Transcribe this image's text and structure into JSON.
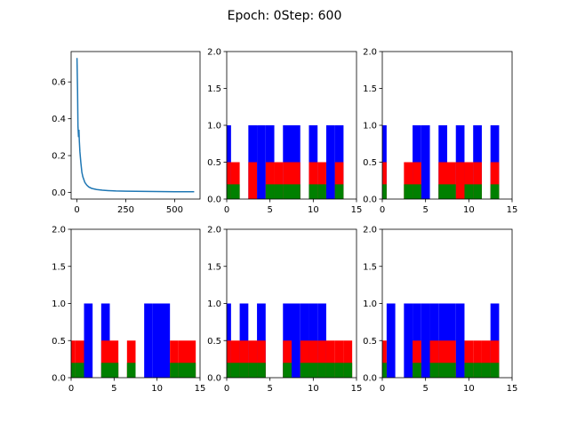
{
  "figure_title": "Epoch: 0Step: 600",
  "colors": {
    "blue": "#0000ff",
    "red": "#ff0000",
    "green": "#008000",
    "line": "#1f77b4",
    "axis": "#000000"
  },
  "chart_data": [
    {
      "type": "line",
      "title": "",
      "xlabel": "",
      "ylabel": "",
      "xlim": [
        -30,
        630
      ],
      "ylim": [
        -0.036,
        0.765
      ],
      "xticks": [
        0,
        250,
        500
      ],
      "yticks": [
        0.0,
        0.2,
        0.4,
        0.6
      ],
      "ytick_labels": [
        "0.0",
        "0.2",
        "0.4",
        "0.6"
      ],
      "grid": false,
      "series": [
        {
          "color": "#1f77b4",
          "x": [
            0,
            3,
            5,
            8,
            10,
            12,
            15,
            20,
            25,
            30,
            40,
            50,
            60,
            75,
            100,
            130,
            160,
            200,
            250,
            300,
            400,
            500,
            600
          ],
          "y": [
            0.73,
            0.55,
            0.36,
            0.3,
            0.34,
            0.28,
            0.22,
            0.16,
            0.11,
            0.085,
            0.055,
            0.04,
            0.03,
            0.022,
            0.016,
            0.012,
            0.01,
            0.008,
            0.007,
            0.006,
            0.005,
            0.004,
            0.004
          ]
        }
      ]
    },
    {
      "type": "bar",
      "xlim": [
        0,
        15
      ],
      "ylim": [
        0,
        2
      ],
      "xticks": [
        0,
        5,
        10,
        15
      ],
      "yticks": [
        0.0,
        0.5,
        1.0,
        1.5,
        2.0
      ],
      "ytick_labels": [
        "0.0",
        "0.5",
        "1.0",
        "1.5",
        "2.0"
      ],
      "x": [
        0,
        1,
        2,
        3,
        4,
        5,
        6,
        7,
        8,
        9,
        10,
        11,
        12,
        13,
        14
      ],
      "series": [
        {
          "color": "#0000ff",
          "values": [
            1,
            0,
            0,
            1,
            1,
            1,
            0,
            1,
            1,
            0,
            1,
            0,
            1,
            1,
            0
          ]
        },
        {
          "color": "#ff0000",
          "values": [
            0.5,
            0.5,
            0,
            0.5,
            0,
            0.5,
            0.5,
            0.5,
            0.5,
            0,
            0.5,
            0.5,
            0,
            0.5,
            0
          ]
        },
        {
          "color": "#008000",
          "values": [
            0.2,
            0.2,
            0,
            0,
            0,
            0.2,
            0.2,
            0.2,
            0.2,
            0,
            0.2,
            0.2,
            0,
            0.2,
            0
          ]
        }
      ]
    },
    {
      "type": "bar",
      "xlim": [
        0,
        15
      ],
      "ylim": [
        0,
        2
      ],
      "xticks": [
        0,
        5,
        10,
        15
      ],
      "yticks": [
        0.0,
        0.5,
        1.0,
        1.5,
        2.0
      ],
      "ytick_labels": [
        "0.0",
        "0.5",
        "1.0",
        "1.5",
        "2.0"
      ],
      "x": [
        0,
        1,
        2,
        3,
        4,
        5,
        6,
        7,
        8,
        9,
        10,
        11,
        12,
        13,
        14
      ],
      "series": [
        {
          "color": "#0000ff",
          "values": [
            1,
            0,
            0,
            0,
            1,
            1,
            0,
            1,
            0,
            1,
            0,
            1,
            0,
            1,
            0
          ]
        },
        {
          "color": "#ff0000",
          "values": [
            0.5,
            0,
            0,
            0.5,
            0.5,
            0,
            0,
            0.5,
            0.5,
            0.5,
            0.5,
            0.5,
            0,
            0.5,
            0
          ]
        },
        {
          "color": "#008000",
          "values": [
            0.2,
            0,
            0,
            0.2,
            0.2,
            0,
            0,
            0.2,
            0.2,
            0,
            0.2,
            0.2,
            0,
            0.2,
            0
          ]
        }
      ]
    },
    {
      "type": "bar",
      "xlim": [
        0,
        15
      ],
      "ylim": [
        0,
        2
      ],
      "xticks": [
        0,
        5,
        10,
        15
      ],
      "yticks": [
        0.0,
        0.5,
        1.0,
        1.5,
        2.0
      ],
      "ytick_labels": [
        "0.0",
        "0.5",
        "1.0",
        "1.5",
        "2.0"
      ],
      "x": [
        0,
        1,
        2,
        3,
        4,
        5,
        6,
        7,
        8,
        9,
        10,
        11,
        12,
        13,
        14
      ],
      "series": [
        {
          "color": "#0000ff",
          "values": [
            0,
            0,
            1,
            0,
            1,
            0,
            0,
            0,
            0,
            1,
            1,
            1,
            0,
            0,
            0
          ]
        },
        {
          "color": "#ff0000",
          "values": [
            0.5,
            0.5,
            0,
            0,
            0.5,
            0.5,
            0,
            0.5,
            0,
            0,
            0,
            0,
            0.5,
            0.5,
            0.5
          ]
        },
        {
          "color": "#008000",
          "values": [
            0.2,
            0.2,
            0,
            0,
            0.2,
            0.2,
            0,
            0.2,
            0,
            0,
            0,
            0,
            0.2,
            0.2,
            0.2
          ]
        }
      ]
    },
    {
      "type": "bar",
      "xlim": [
        0,
        15
      ],
      "ylim": [
        0,
        2
      ],
      "xticks": [
        0,
        5,
        10,
        15
      ],
      "yticks": [
        0.0,
        0.5,
        1.0,
        1.5,
        2.0
      ],
      "ytick_labels": [
        "0.0",
        "0.5",
        "1.0",
        "1.5",
        "2.0"
      ],
      "x": [
        0,
        1,
        2,
        3,
        4,
        5,
        6,
        7,
        8,
        9,
        10,
        11,
        12,
        13,
        14
      ],
      "series": [
        {
          "color": "#0000ff",
          "values": [
            1,
            0,
            1,
            0,
            1,
            0,
            0,
            1,
            1,
            1,
            1,
            1,
            0,
            0,
            0
          ]
        },
        {
          "color": "#ff0000",
          "values": [
            0.5,
            0.5,
            0.5,
            0.5,
            0.5,
            0,
            0,
            0.5,
            0,
            0.5,
            0.5,
            0.5,
            0.5,
            0.5,
            0.5
          ]
        },
        {
          "color": "#008000",
          "values": [
            0.2,
            0.2,
            0.2,
            0.2,
            0.2,
            0,
            0,
            0.2,
            0,
            0.2,
            0.2,
            0.2,
            0.2,
            0.2,
            0.2
          ]
        }
      ]
    },
    {
      "type": "bar",
      "xlim": [
        0,
        15
      ],
      "ylim": [
        0,
        2
      ],
      "xticks": [
        0,
        5,
        10,
        15
      ],
      "yticks": [
        0.0,
        0.5,
        1.0,
        1.5,
        2.0
      ],
      "ytick_labels": [
        "0.0",
        "0.5",
        "1.0",
        "1.5",
        "2.0"
      ],
      "x": [
        0,
        1,
        2,
        3,
        4,
        5,
        6,
        7,
        8,
        9,
        10,
        11,
        12,
        13,
        14
      ],
      "series": [
        {
          "color": "#0000ff",
          "values": [
            0,
            1,
            0,
            1,
            1,
            1,
            1,
            1,
            1,
            1,
            0,
            0,
            0,
            1,
            0
          ]
        },
        {
          "color": "#ff0000",
          "values": [
            0.5,
            0,
            0,
            0,
            0.5,
            0,
            0.5,
            0.5,
            0.5,
            0,
            0.5,
            0.5,
            0.5,
            0.5,
            0
          ]
        },
        {
          "color": "#008000",
          "values": [
            0.2,
            0,
            0,
            0,
            0.2,
            0,
            0.2,
            0.2,
            0.2,
            0,
            0.2,
            0.2,
            0.2,
            0.2,
            0
          ]
        }
      ]
    }
  ]
}
